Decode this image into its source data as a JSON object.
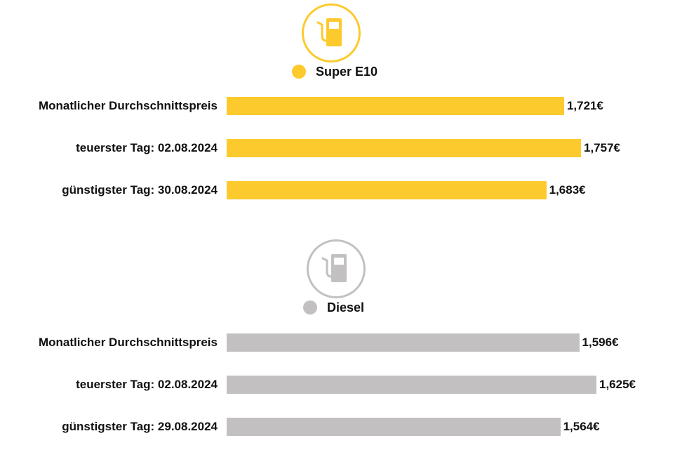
{
  "chart_data": [
    {
      "type": "bar",
      "orientation": "horizontal",
      "icon": "fuel-pump-icon",
      "legend": "Super E10",
      "color": "#fdca2e",
      "categories": [
        "Monatlicher Durchschnittspreis",
        "teuerster Tag: 02.08.2024",
        "günstigster Tag: 30.08.2024"
      ],
      "values": [
        1.721,
        1.757,
        1.683
      ],
      "value_labels": [
        "1,721€",
        "1,757€",
        "1,683€"
      ]
    },
    {
      "type": "bar",
      "orientation": "horizontal",
      "icon": "fuel-pump-icon",
      "legend": "Diesel",
      "color": "#c2c0c0",
      "categories": [
        "Monatlicher Durchschnittspreis",
        "teuerster Tag: 02.08.2024",
        "günstigster Tag: 29.08.2024"
      ],
      "values": [
        1.596,
        1.625,
        1.564
      ],
      "value_labels": [
        "1,596€",
        "1,625€",
        "1,564€"
      ]
    }
  ]
}
